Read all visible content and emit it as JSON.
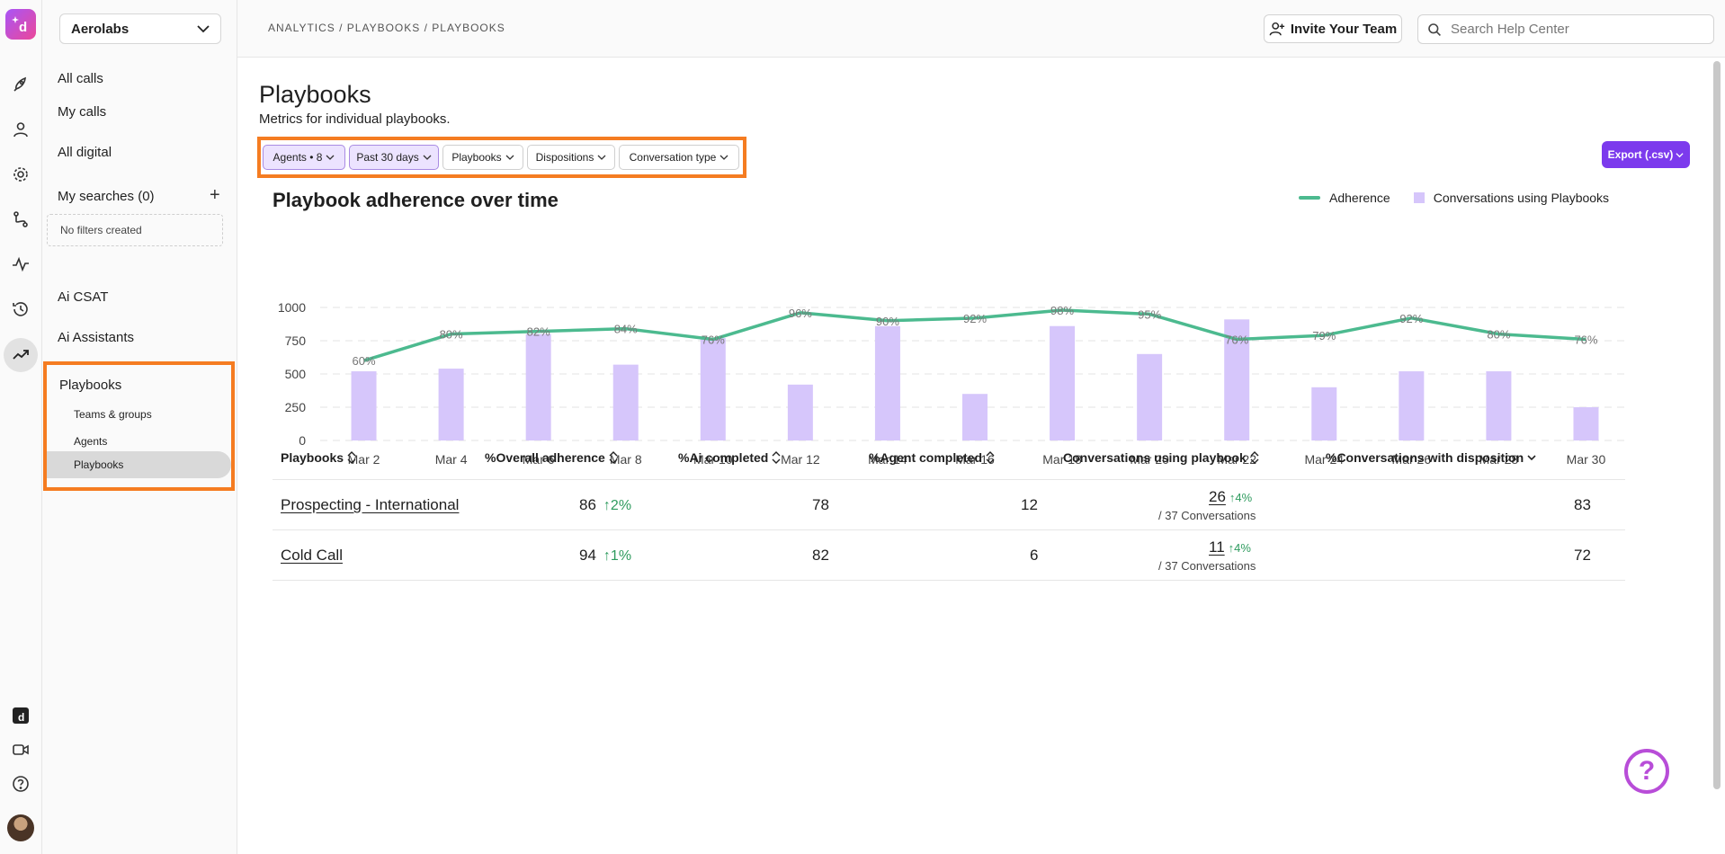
{
  "org": {
    "name": "Aerolabs"
  },
  "sidebar": {
    "links": [
      "All calls",
      "My calls",
      "All digital"
    ],
    "my_searches": "My searches (0)",
    "plus": "+",
    "no_filters": "No filters created",
    "links2": [
      "Ai CSAT",
      "Ai Assistants"
    ],
    "playbooks_group": {
      "title": "Playbooks",
      "items": [
        "Teams & groups",
        "Agents",
        "Playbooks"
      ]
    }
  },
  "header": {
    "breadcrumb": "ANALYTICS / PLAYBOOKS / PLAYBOOKS",
    "invite_label": "Invite Your Team",
    "search_placeholder": "Search Help Center"
  },
  "page": {
    "title": "Playbooks",
    "subtitle": "Metrics for individual playbooks."
  },
  "filters": [
    "Agents • 8",
    "Past 30 days",
    "Playbooks",
    "Dispositions",
    "Conversation type"
  ],
  "export_label": "Export (.csv)",
  "chart_data": {
    "type": "bar",
    "title": "Playbook adherence over time",
    "legend": [
      "Adherence",
      "Conversations using Playbooks"
    ],
    "legend_position": "top-right",
    "x_tick_labels": [
      "Mar 2",
      "Mar 4",
      "Mar 6",
      "Mar 8",
      "Mar 10",
      "Mar 12",
      "Mar 14",
      "Mar 16",
      "Mar 18",
      "Mar 20",
      "Mar 22",
      "Mar 24",
      "Mar 26",
      "Mar 28",
      "Mar 30"
    ],
    "y_ticks": [
      0,
      250,
      500,
      750,
      1000
    ],
    "ylim": [
      0,
      1000
    ],
    "grid": true,
    "series": [
      {
        "name": "Conversations using Playbooks",
        "type": "bar",
        "values": [
          520,
          540,
          800,
          570,
          770,
          420,
          860,
          350,
          860,
          650,
          910,
          400,
          520,
          520,
          250
        ]
      },
      {
        "name": "Adherence",
        "type": "line",
        "color": "#4cba8f",
        "values": [
          60,
          80,
          82,
          84,
          76,
          96,
          90,
          92,
          98,
          95,
          76,
          79,
          92,
          80,
          76
        ],
        "labels": [
          "60%",
          "80%",
          "82%",
          "84%",
          "76%",
          "96%",
          "90%",
          "92%",
          "98%",
          "95%",
          "76%",
          "79%",
          "92%",
          "80%",
          "76%"
        ]
      }
    ],
    "bar_color": "#d6c6fb"
  },
  "table": {
    "headers": [
      "Playbooks",
      "%Overall adherence",
      "%Ai completed",
      "%Agent completed",
      "Conversations using playbook",
      "%Conversations with disposition"
    ],
    "rows": [
      {
        "name": "Prospecting - International",
        "adherence": "86",
        "adherence_delta": "2%",
        "ai": "78",
        "agent": "12",
        "conv": "26",
        "conv_delta": "4%",
        "conv_sub": "/ 37 Conversations",
        "disposition": "83"
      },
      {
        "name": "Cold Call",
        "adherence": "94",
        "adherence_delta": "1%",
        "ai": "82",
        "agent": "6",
        "conv": "11",
        "conv_delta": "4%",
        "conv_sub": "/ 37 Conversations",
        "disposition": "72"
      }
    ]
  },
  "help_label": "?"
}
